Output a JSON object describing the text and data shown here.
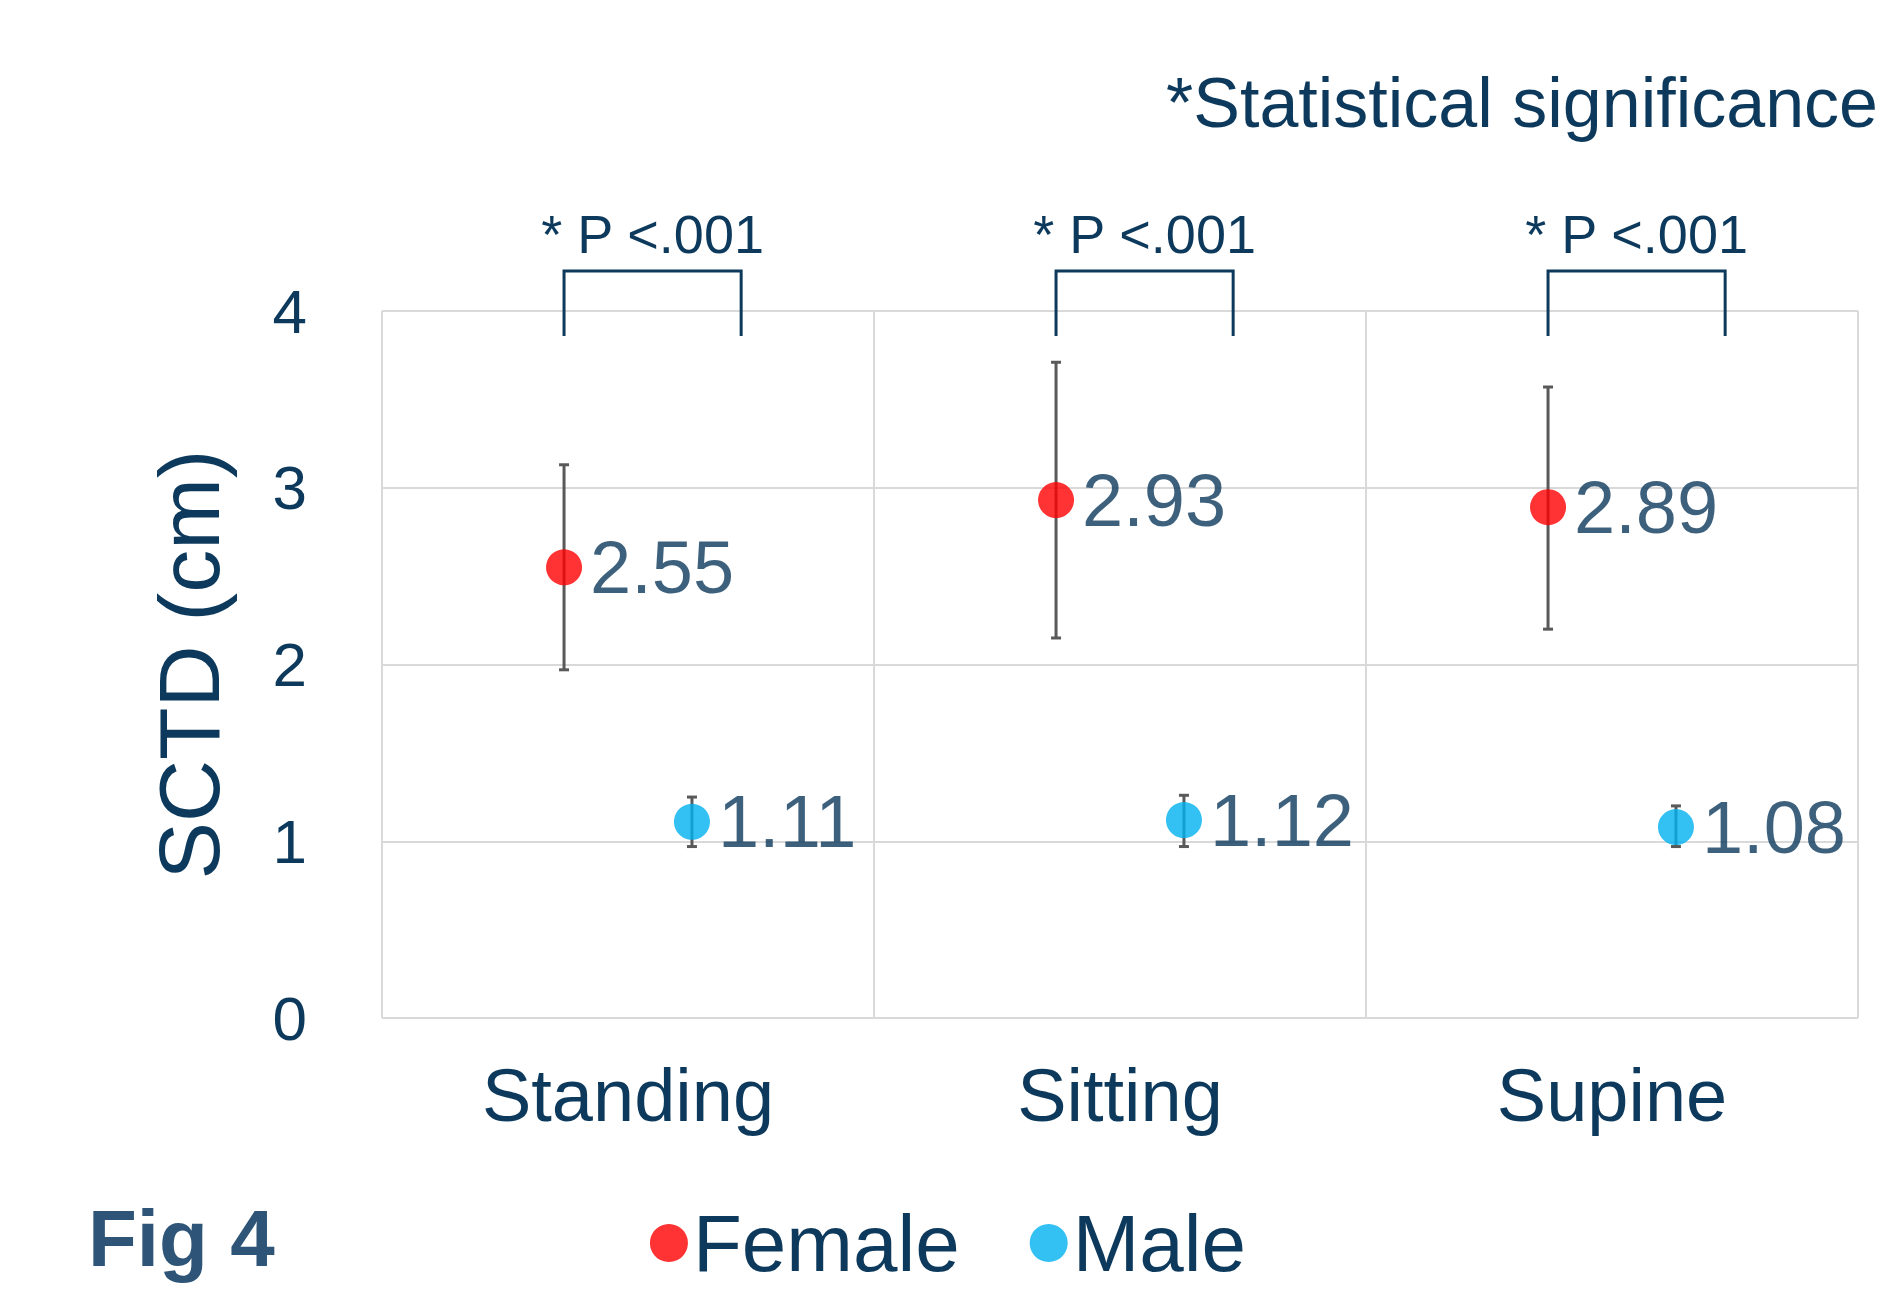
{
  "chart_data": {
    "type": "scatter",
    "ylabel": "SCTD (cm)",
    "categories": [
      "Standing",
      "Sitting",
      "Supine"
    ],
    "ylim": [
      0,
      4
    ],
    "yticks": [
      0,
      1,
      2,
      3,
      4
    ],
    "grid": true,
    "legend": "bottom",
    "marker": "circle",
    "data_labels": true,
    "series": [
      {
        "name": "Female",
        "color": "#ff0000",
        "values": [
          2.55,
          2.93,
          2.89
        ],
        "errors": [
          [
            1.97,
            3.13
          ],
          [
            2.15,
            3.71
          ],
          [
            2.2,
            3.57
          ]
        ]
      },
      {
        "name": "Male",
        "color": "#00b0f0",
        "values": [
          1.11,
          1.12,
          1.08
        ],
        "errors": [
          [
            0.97,
            1.25
          ],
          [
            0.97,
            1.26
          ],
          [
            0.97,
            1.2
          ]
        ]
      }
    ],
    "annotations": [
      "*Statistical significance",
      "* P <.001",
      "* P <.001",
      "* P <.001",
      "Fig 4"
    ]
  }
}
